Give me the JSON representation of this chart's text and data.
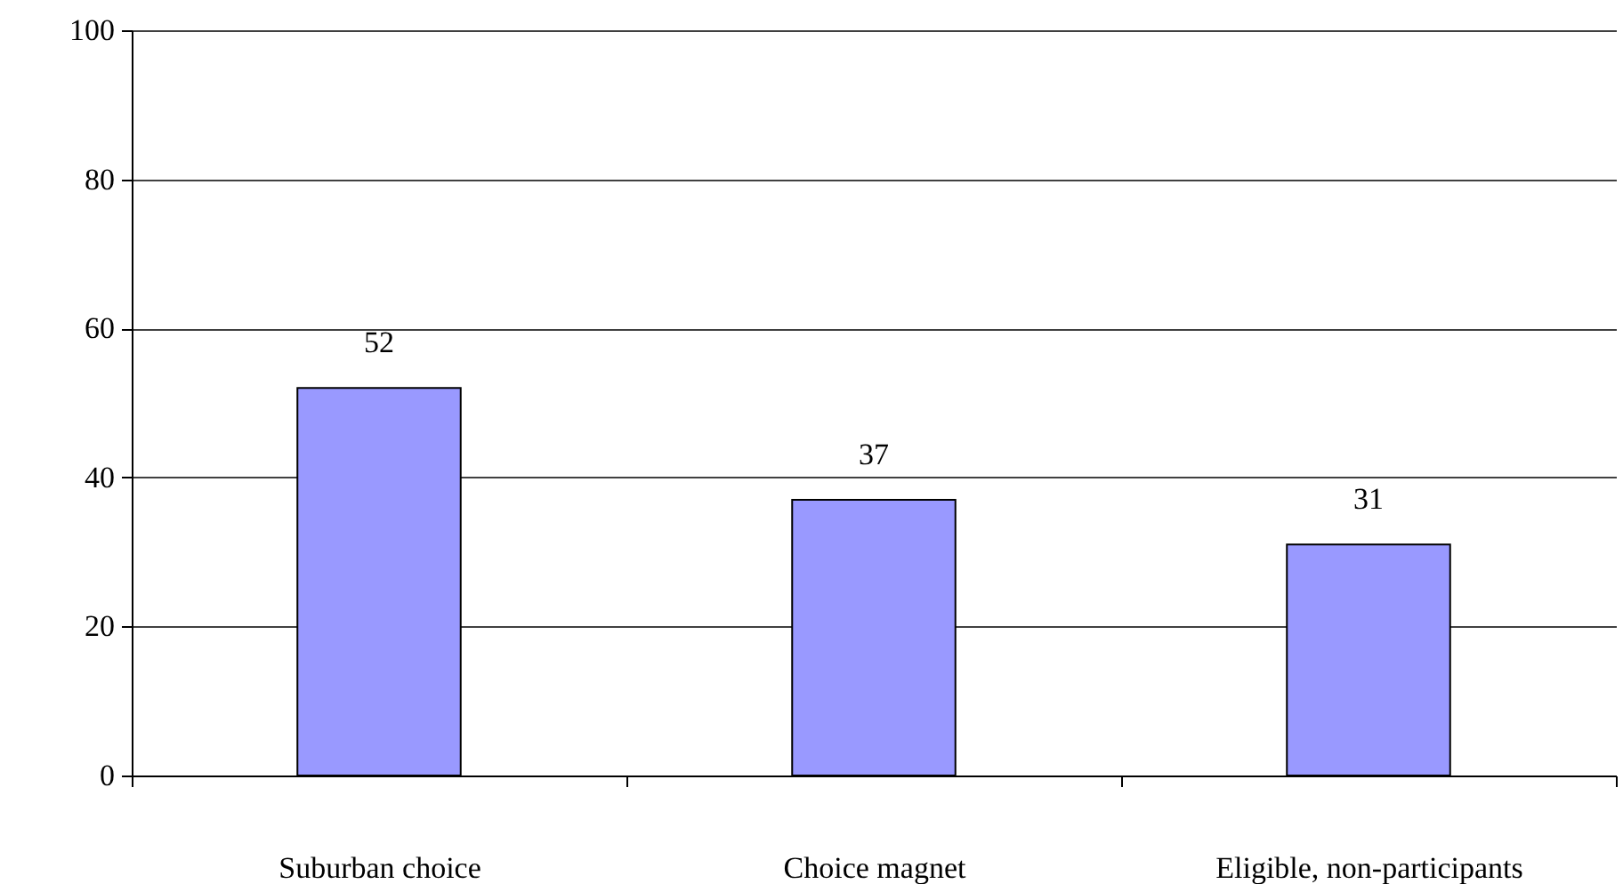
{
  "chart_data": {
    "type": "bar",
    "categories": [
      "Suburban choice",
      "Choice magnet",
      "Eligible, non-participants"
    ],
    "values": [
      52,
      37,
      31
    ],
    "color": "#9999ff",
    "ylim": [
      0,
      100
    ],
    "yticks": [
      0,
      20,
      40,
      60,
      80,
      100
    ],
    "grid": "y",
    "data_labels": true
  }
}
